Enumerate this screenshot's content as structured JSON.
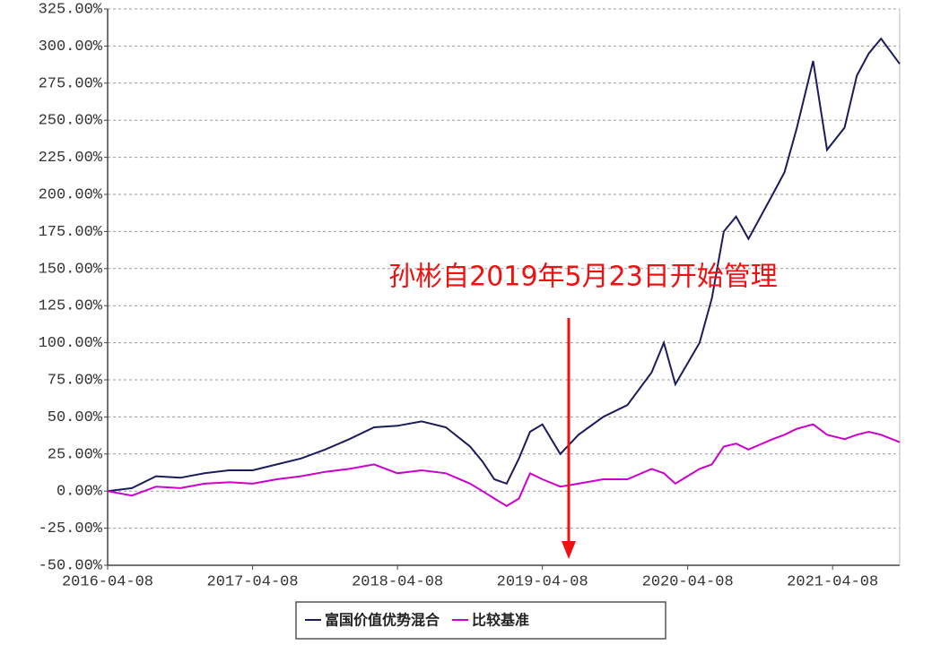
{
  "chart_data": {
    "type": "line",
    "annotation": "孙彬自2019年5月23日开始管理",
    "x": [
      "2016-04-08",
      "2016-06-08",
      "2016-08-08",
      "2016-10-08",
      "2016-12-08",
      "2017-02-08",
      "2017-04-08",
      "2017-06-08",
      "2017-08-08",
      "2017-10-08",
      "2017-12-08",
      "2018-02-08",
      "2018-04-08",
      "2018-06-08",
      "2018-08-08",
      "2018-10-08",
      "2018-11-08",
      "2018-12-08",
      "2019-01-08",
      "2019-02-08",
      "2019-03-08",
      "2019-04-08",
      "2019-05-23",
      "2019-07-08",
      "2019-09-08",
      "2019-11-08",
      "2020-01-08",
      "2020-02-08",
      "2020-03-08",
      "2020-05-08",
      "2020-06-08",
      "2020-07-08",
      "2020-08-08",
      "2020-09-08",
      "2020-11-08",
      "2020-12-08",
      "2021-01-08",
      "2021-02-18",
      "2021-03-25",
      "2021-05-08",
      "2021-06-08",
      "2021-07-08",
      "2021-08-08",
      "2021-09-24"
    ],
    "series": [
      {
        "name": "富国价值优势混合",
        "color": "#1c1c5c",
        "values": [
          0,
          2,
          10,
          9,
          12,
          14,
          14,
          18,
          22,
          28,
          35,
          43,
          44,
          47,
          43,
          30,
          20,
          8,
          5,
          22,
          40,
          45,
          25,
          38,
          50,
          58,
          80,
          100,
          72,
          100,
          130,
          175,
          185,
          170,
          200,
          215,
          245,
          290,
          230,
          245,
          280,
          295,
          305,
          288
        ]
      },
      {
        "name": "比较基准",
        "color": "#cc00cc",
        "values": [
          0,
          -3,
          3,
          2,
          5,
          6,
          5,
          8,
          10,
          13,
          15,
          18,
          12,
          14,
          12,
          5,
          0,
          -5,
          -10,
          -5,
          12,
          8,
          3,
          5,
          8,
          8,
          15,
          12,
          5,
          15,
          18,
          30,
          32,
          28,
          35,
          38,
          42,
          45,
          38,
          35,
          38,
          40,
          38,
          33
        ]
      }
    ],
    "xlim": [
      "2016-04-08",
      "2021-09-24"
    ],
    "xticks": [
      "2016-04-08",
      "2017-04-08",
      "2018-04-08",
      "2019-04-08",
      "2020-04-08",
      "2021-04-08"
    ],
    "ylim": [
      -50,
      325
    ],
    "yticks": [
      {
        "value": -50,
        "label": "-50.00%"
      },
      {
        "value": -25,
        "label": "-25.00%"
      },
      {
        "value": 0,
        "label": "0.00%"
      },
      {
        "value": 25,
        "label": "25.00%"
      },
      {
        "value": 50,
        "label": "50.00%"
      },
      {
        "value": 75,
        "label": "75.00%"
      },
      {
        "value": 100,
        "label": "100.00%"
      },
      {
        "value": 125,
        "label": "125.00%"
      },
      {
        "value": 150,
        "label": "150.00%"
      },
      {
        "value": 175,
        "label": "175.00%"
      },
      {
        "value": 200,
        "label": "200.00%"
      },
      {
        "value": 225,
        "label": "225.00%"
      },
      {
        "value": 250,
        "label": "250.00%"
      },
      {
        "value": 275,
        "label": "275.00%"
      },
      {
        "value": 300,
        "label": "300.00%"
      },
      {
        "value": 325,
        "label": "325.00%"
      }
    ],
    "grid": true
  }
}
